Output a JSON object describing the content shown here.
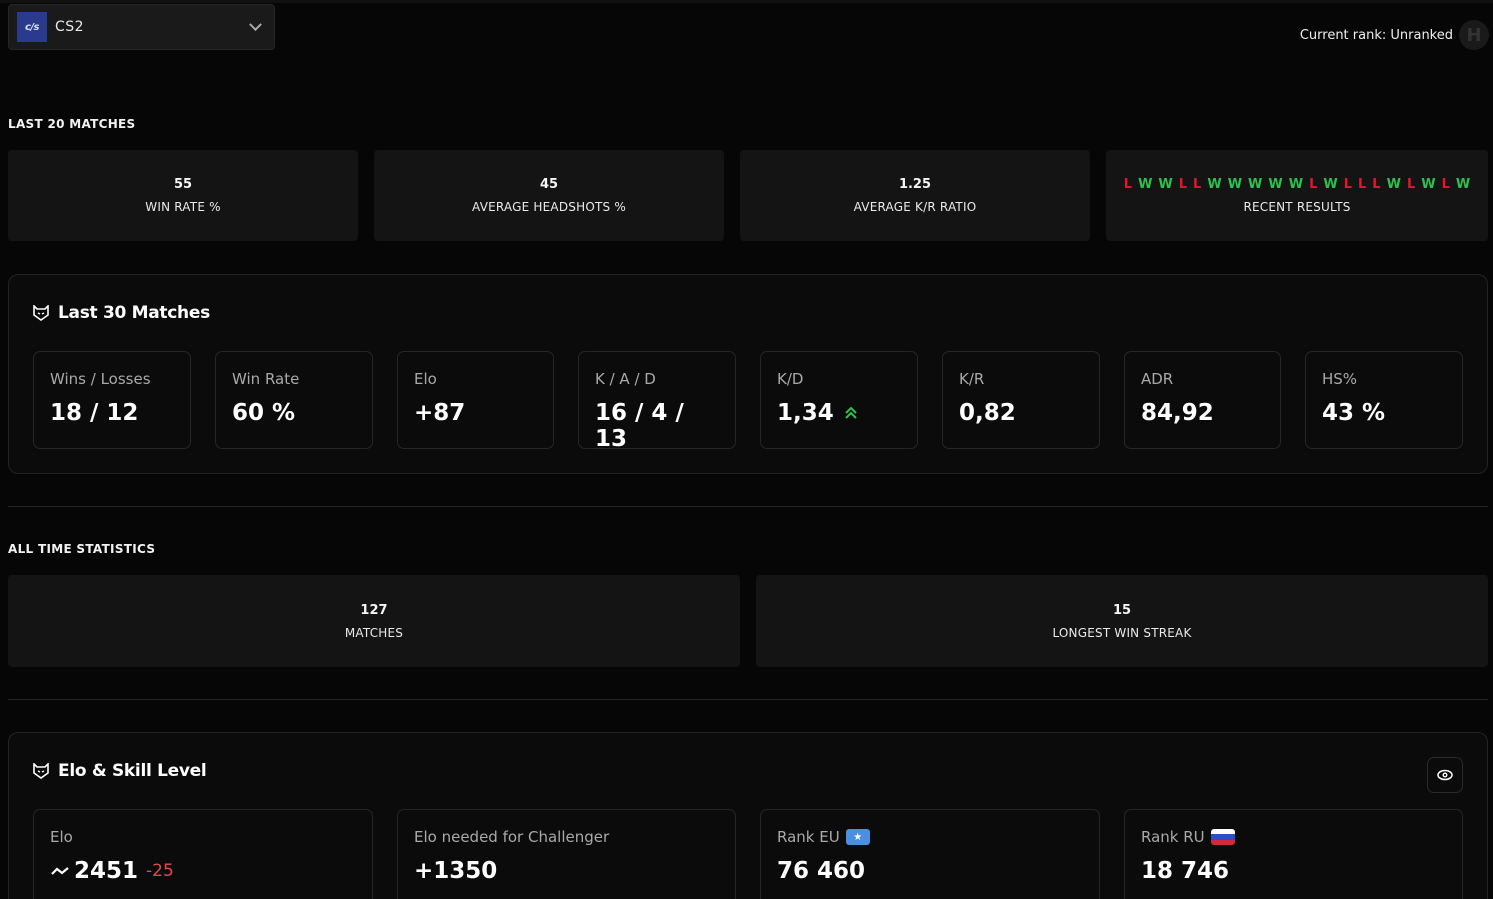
{
  "header": {
    "game_selector": {
      "logo_text": "c/s",
      "label": "CS2"
    },
    "current_rank": "Current rank: Unranked"
  },
  "last20": {
    "title": "LAST 20 MATCHES",
    "cards": [
      {
        "value": "55",
        "label": "WIN RATE %"
      },
      {
        "value": "45",
        "label": "AVERAGE HEADSHOTS %"
      },
      {
        "value": "1.25",
        "label": "AVERAGE K/R RATIO"
      }
    ],
    "recent_results": {
      "label": "RECENT RESULTS",
      "results": [
        "L",
        "W",
        "W",
        "L",
        "L",
        "W",
        "W",
        "W",
        "W",
        "W",
        "L",
        "W",
        "L",
        "L",
        "L",
        "W",
        "L",
        "W",
        "L",
        "W"
      ]
    }
  },
  "last30": {
    "title": "Last 30 Matches",
    "stats": [
      {
        "label": "Wins / Losses",
        "value": "18 / 12"
      },
      {
        "label": "Win Rate",
        "value": "60 %"
      },
      {
        "label": "Elo",
        "value": "+87"
      },
      {
        "label": "K / A / D",
        "value": "16 / 4 / 13"
      },
      {
        "label": "K/D",
        "value": "1,34",
        "trend": "up"
      },
      {
        "label": "K/R",
        "value": "0,82"
      },
      {
        "label": "ADR",
        "value": "84,92"
      },
      {
        "label": "HS%",
        "value": "43 %"
      }
    ]
  },
  "all_time": {
    "title": "ALL TIME STATISTICS",
    "cards": [
      {
        "value": "127",
        "label": "MATCHES"
      },
      {
        "value": "15",
        "label": "LONGEST WIN STREAK"
      }
    ]
  },
  "elo_skill": {
    "title": "Elo & Skill Level",
    "stats": [
      {
        "label": "Elo",
        "value": "2451",
        "delta": "-25"
      },
      {
        "label": "Elo needed for Challenger",
        "value": "+1350"
      },
      {
        "label": "Rank EU",
        "value": "76 460",
        "flag": "eu"
      },
      {
        "label": "Rank RU",
        "value": "18 746",
        "flag": "ru"
      }
    ]
  },
  "colors": {
    "win": "#2ac24f",
    "loss": "#e8142c",
    "trend_up": "#2ac24f",
    "elo_delta_negative": "#e34a4a"
  }
}
